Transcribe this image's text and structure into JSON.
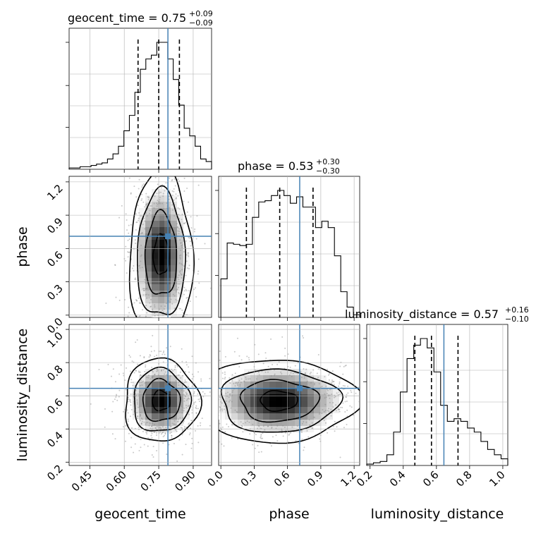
{
  "chart_data": {
    "type": "corner",
    "parameters": [
      "geocent_time",
      "phase",
      "luminosity_distance"
    ],
    "truths": {
      "geocent_time": 0.79,
      "phase": 0.71,
      "luminosity_distance": 0.645
    },
    "axes": {
      "geocent_time": {
        "range": [
          0.36,
          0.98
        ],
        "ticks": [
          0.45,
          0.6,
          0.75,
          0.9
        ],
        "tick_labels": [
          "0.45",
          "0.60",
          "0.75",
          "0.90"
        ]
      },
      "phase": {
        "range": [
          -0.02,
          1.25
        ],
        "ticks": [
          0.0,
          0.3,
          0.6,
          0.9,
          1.2
        ],
        "tick_labels": [
          "0.0",
          "0.3",
          "0.6",
          "0.9",
          "1.2"
        ]
      },
      "luminosity_distance": {
        "range": [
          0.18,
          1.03
        ],
        "ticks": [
          0.2,
          0.4,
          0.6,
          0.8,
          1.0
        ],
        "tick_labels": [
          "0.2",
          "0.4",
          "0.6",
          "0.8",
          "1.0"
        ]
      }
    },
    "titles": [
      {
        "param": "geocent_time",
        "text": "geocent_time = 0.75",
        "plus": "+0.09",
        "minus": "−0.09"
      },
      {
        "param": "phase",
        "text": "phase = 0.53",
        "plus": "+0.30",
        "minus": "−0.30"
      },
      {
        "param": "luminosity_distance",
        "text": "luminosity_distance = 0.57",
        "plus": "+0.16",
        "minus": "−0.10"
      }
    ],
    "quantiles": {
      "geocent_time": [
        0.66,
        0.75,
        0.84
      ],
      "phase": [
        0.23,
        0.53,
        0.83
      ],
      "luminosity_distance": [
        0.47,
        0.57,
        0.73
      ]
    },
    "histograms": {
      "geocent_time": {
        "edges": [
          0.36,
          0.98
        ],
        "counts": [
          1,
          1,
          2,
          2,
          3,
          4,
          5,
          8,
          12,
          18,
          30,
          42,
          60,
          78,
          86,
          89,
          99,
          99,
          86,
          70,
          50,
          32,
          26,
          18,
          8,
          6
        ]
      },
      "phase": {
        "edges": [
          0.0,
          1.25
        ],
        "counts": [
          30,
          58,
          57,
          56,
          57,
          78,
          90,
          91,
          95,
          99,
          95,
          89,
          94,
          86,
          86,
          70,
          75,
          70,
          48,
          20,
          8,
          2
        ]
      },
      "luminosity_distance": {
        "edges": [
          0.18,
          1.03
        ],
        "counts": [
          1,
          2,
          3,
          8,
          25,
          55,
          80,
          90,
          95,
          88,
          70,
          45,
          33,
          35,
          33,
          28,
          25,
          18,
          12,
          8,
          5
        ]
      }
    },
    "densities": [
      {
        "x": "geocent_time",
        "y": "phase",
        "center": [
          0.76,
          0.54
        ],
        "sigma": [
          0.055,
          0.3
        ]
      },
      {
        "x": "geocent_time",
        "y": "luminosity_distance",
        "center": [
          0.76,
          0.57
        ],
        "sigma": [
          0.065,
          0.1
        ]
      },
      {
        "x": "phase",
        "y": "luminosity_distance",
        "center": [
          0.52,
          0.57
        ],
        "sigma": [
          0.28,
          0.1
        ]
      }
    ],
    "colors": {
      "truth": "#4682b4",
      "hist": "#000000",
      "grid": "#b0b0b0",
      "points": "#888888"
    }
  }
}
